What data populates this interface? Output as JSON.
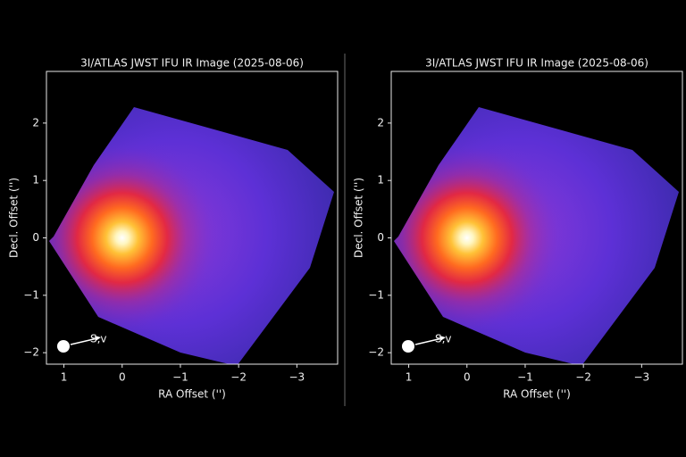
{
  "chart_data": [
    {
      "type": "image",
      "title": "3I/ATLAS JWST IFU IR Image (2025-08-06)",
      "xlabel": "RA Offset ('')",
      "ylabel": "Decl. Offset ('')",
      "annotation": "S,v",
      "xlim": [
        1.3,
        -3.7
      ],
      "ylim": [
        -2.2,
        2.9
      ],
      "xticks": [
        1,
        0,
        {
          "value": -1,
          "label": "−1"
        },
        {
          "value": -2,
          "label": "−2"
        },
        {
          "value": -3,
          "label": "−3"
        }
      ],
      "yticks": [
        {
          "value": -2,
          "label": "−2"
        },
        {
          "value": -1,
          "label": "−1"
        },
        0,
        1,
        2
      ]
    },
    {
      "type": "image",
      "title": "3I/ATLAS JWST IFU IR Image (2025-08-06)",
      "xlabel": "RA Offset ('')",
      "ylabel": "Decl. Offset ('')",
      "annotation": "S,v",
      "xlim": [
        1.3,
        -3.7
      ],
      "ylim": [
        -2.2,
        2.9
      ],
      "xticks": [
        1,
        0,
        {
          "value": -1,
          "label": "−1"
        },
        {
          "value": -2,
          "label": "−2"
        },
        {
          "value": -3,
          "label": "−3"
        }
      ],
      "yticks": [
        {
          "value": -2,
          "label": "−2"
        },
        {
          "value": -1,
          "label": "−1"
        },
        0,
        1,
        2
      ]
    }
  ]
}
